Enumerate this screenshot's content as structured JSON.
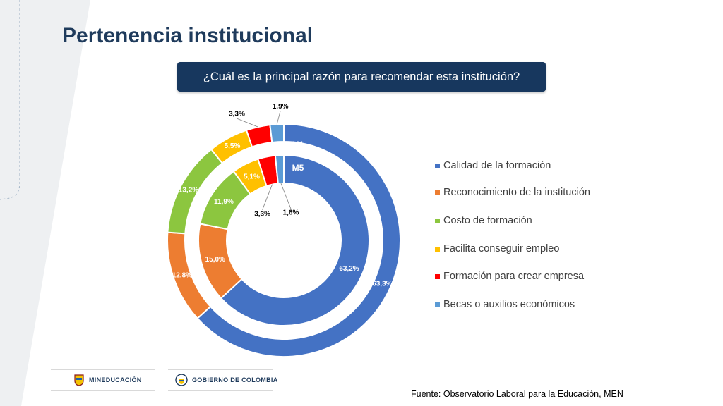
{
  "slide": {
    "title": "Pertenencia institucional",
    "question": "¿Cuál es la principal razón para recomendar esta institución?",
    "source": "Fuente: Observatorio Laboral para la Educación, MEN",
    "logos": [
      "MINEDUCACIÓN",
      "GOBIERNO DE COLOMBIA"
    ]
  },
  "chart_data": {
    "type": "donut",
    "categories": [
      "Calidad de la formación",
      "Reconocimiento de la institución",
      "Costo de formación",
      "Facilita conseguir empleo",
      "Formación para crear empresa",
      "Becas o auxilios económicos"
    ],
    "colors": [
      "#4472c4",
      "#ed7d31",
      "#8cc63f",
      "#ffc000",
      "#ff0000",
      "#5b9bd5"
    ],
    "series": [
      {
        "name": "M1",
        "ring": "outer",
        "values": [
          63.3,
          12.8,
          13.2,
          5.5,
          3.3,
          1.9
        ],
        "labels": [
          "63,3%",
          "12,8%",
          "13,2%",
          "5,5%",
          "3,3%",
          "1,9%"
        ]
      },
      {
        "name": "M5",
        "ring": "inner",
        "values": [
          63.2,
          15.0,
          11.9,
          5.1,
          3.3,
          1.6
        ],
        "labels": [
          "63,2%",
          "15,0%",
          "11,9%",
          "5,1%",
          "3,3%",
          "1,6%"
        ]
      }
    ],
    "legend_position": "right"
  }
}
